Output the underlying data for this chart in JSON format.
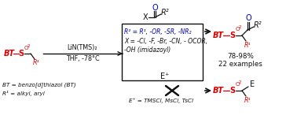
{
  "bg_color": "#ffffff",
  "reagent_line1": "LiN(TMS)₂",
  "reagent_line2": "THF, -78°C",
  "box_text_line1": "R² = R¹, -OR, -SR, -NR₂",
  "box_text_line2": "X = -Cl, -F, -Br, -CN, - OCOR,",
  "box_text_line3": "-OH (imidazoyl)",
  "product1_yield": "78-98%",
  "product1_examples": "22 examples",
  "electrophile_label": "E⁺",
  "electrophile_list": "E⁺ = TMSCl, MsCl, TsCl",
  "footnote1": "BT = benzo[d]thiazol (BT)",
  "footnote2": "R¹ = alkyl, aryl",
  "red": "#dd0000",
  "blue": "#0000bb",
  "black": "#111111"
}
